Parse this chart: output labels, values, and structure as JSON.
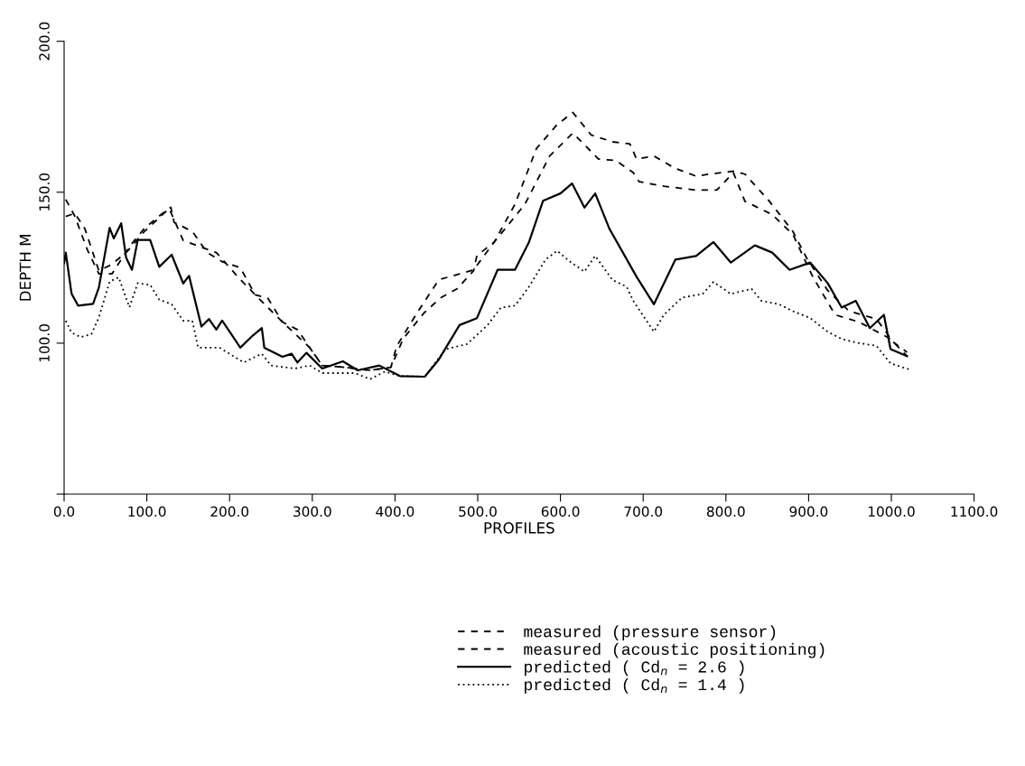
{
  "chart_data": {
    "type": "line",
    "xlabel": "PROFILES",
    "ylabel": "DEPTH M",
    "xlim": [
      0,
      1100
    ],
    "ylim": [
      50,
      200
    ],
    "xticks": [
      {
        "value": 0,
        "label": "0.0"
      },
      {
        "value": 100,
        "label": "100.0"
      },
      {
        "value": 200,
        "label": "200.0"
      },
      {
        "value": 300,
        "label": "300.0"
      },
      {
        "value": 400,
        "label": "400.0"
      },
      {
        "value": 500,
        "label": "500.0"
      },
      {
        "value": 600,
        "label": "600.0"
      },
      {
        "value": 700,
        "label": "700.0"
      },
      {
        "value": 800,
        "label": "800.0"
      },
      {
        "value": 900,
        "label": "900.0"
      },
      {
        "value": 1000,
        "label": "1000.0"
      },
      {
        "value": 1100,
        "label": "1100.0"
      }
    ],
    "yticks": [
      {
        "value": 50,
        "label": null
      },
      {
        "value": 100,
        "label": "100.0"
      },
      {
        "value": 150,
        "label": "150.0"
      },
      {
        "value": 200,
        "label": "200.0"
      }
    ],
    "grid": false,
    "legend": "bottom",
    "marker": "none",
    "series": [
      {
        "name": "measured (pressure sensor)",
        "color": "#000000",
        "line_style": "dashed",
        "x": [
          2,
          13,
          28,
          42,
          58,
          79,
          97,
          119,
          129,
          133,
          155,
          173,
          191,
          213,
          231,
          246,
          264,
          282,
          297,
          312,
          340,
          370,
          395,
          402,
          428,
          453,
          495,
          520,
          545,
          571,
          596,
          615,
          637,
          663,
          684,
          692,
          713,
          738,
          764,
          780,
          810,
          823,
          852,
          881,
          898,
          923,
          949,
          982,
          1003,
          1019
        ],
        "values": [
          147.6,
          142,
          131,
          123,
          123,
          132,
          138,
          143,
          145,
          140,
          137,
          130,
          127,
          125,
          116,
          115,
          107,
          104.5,
          98.5,
          92.6,
          92,
          91,
          92,
          99,
          110.6,
          121,
          124.3,
          133.5,
          146,
          164.5,
          172.4,
          176.4,
          169,
          166.7,
          166,
          161,
          162,
          158,
          155.3,
          156,
          157,
          156,
          147.2,
          137,
          128,
          117.5,
          110.6,
          108,
          100.2,
          97
        ]
      },
      {
        "name": "measured (acoustic positioning)",
        "color": "#000000",
        "line_style": "dashed",
        "x": [
          2,
          13,
          25,
          42,
          57,
          75,
          97,
          127,
          144,
          184,
          209,
          231,
          264,
          297,
          312,
          340,
          370,
          395,
          410,
          435,
          455,
          475,
          495,
          499,
          520,
          557,
          587,
          615,
          646,
          667,
          688,
          695,
          725,
          764,
          789,
          809,
          823,
          856,
          881,
          905,
          932,
          961,
          999,
          1019
        ],
        "values": [
          142,
          143,
          138,
          124,
          126,
          130,
          137,
          144.6,
          134,
          130,
          122.3,
          116,
          107,
          98.5,
          92.6,
          92,
          91,
          92,
          101.5,
          110,
          115,
          118,
          124,
          129,
          133.5,
          146,
          162,
          169.6,
          161,
          160.5,
          156.5,
          153.5,
          152,
          150.7,
          150.7,
          156.5,
          147,
          142.6,
          136,
          122,
          109.4,
          107,
          101.4,
          95.7
        ]
      },
      {
        "name": "predicted ( Cd$_{n}$ = 2.6 )",
        "color": "#000000",
        "line_style": "solid",
        "x": [
          0,
          2,
          9,
          17,
          35,
          42,
          55,
          60,
          69,
          75,
          82,
          89,
          104,
          115,
          130,
          144,
          151,
          166,
          175,
          184,
          191,
          213,
          228,
          239,
          242,
          264,
          275,
          282,
          293,
          312,
          337,
          355,
          381,
          406,
          436,
          453,
          478,
          499,
          524,
          545,
          562,
          579,
          600,
          614,
          629,
          642,
          659,
          692,
          713,
          739,
          764,
          785,
          806,
          835,
          856,
          877,
          902,
          923,
          940,
          957,
          974,
          991,
          999,
          1019
        ],
        "values": [
          126.5,
          130,
          116.4,
          112.4,
          113,
          118.4,
          138.2,
          134.7,
          139.7,
          128.3,
          124.3,
          134.2,
          134.2,
          125.3,
          129.3,
          119.8,
          122.3,
          105.5,
          108,
          104.5,
          107.5,
          98.5,
          102.5,
          105,
          98.5,
          95.5,
          96.5,
          93.6,
          96.8,
          91.6,
          94,
          91,
          92.6,
          89.1,
          88.9,
          94.6,
          106,
          108.3,
          124.3,
          124.3,
          133.5,
          147.2,
          149.6,
          152.9,
          144.9,
          149.6,
          138,
          122,
          112.9,
          127.7,
          128.9,
          133.5,
          126.7,
          132.4,
          130,
          124.3,
          126.7,
          119.9,
          111.8,
          114,
          105,
          109.4,
          98,
          95.7
        ]
      },
      {
        "name": "predicted ( Cd$_{n}$ = 1.4 )",
        "color": "#000000",
        "line_style": "dotted",
        "x": [
          2,
          9,
          20,
          33,
          42,
          55,
          66,
          73,
          79,
          89,
          104,
          115,
          130,
          144,
          155,
          162,
          188,
          217,
          239,
          250,
          279,
          297,
          312,
          351,
          370,
          388,
          406,
          436,
          461,
          487,
          512,
          528,
          545,
          562,
          582,
          596,
          613,
          629,
          642,
          663,
          680,
          688,
          713,
          725,
          747,
          772,
          785,
          806,
          831,
          843,
          864,
          881,
          902,
          923,
          940,
          957,
          982,
          999,
          1024
        ],
        "values": [
          107.4,
          103.5,
          102,
          103,
          108.5,
          120.4,
          121.8,
          116.4,
          111.9,
          119.9,
          119.3,
          114.4,
          112.9,
          107.4,
          107.4,
          98.5,
          98.5,
          93.6,
          96.5,
          92.6,
          91.6,
          92.6,
          90.1,
          90.1,
          88.1,
          90.6,
          89.1,
          88.9,
          98,
          99.7,
          106,
          111.8,
          112.4,
          118.7,
          127.7,
          130.6,
          126.7,
          123.7,
          128.9,
          120.9,
          118.7,
          114,
          103.8,
          109.4,
          115.1,
          116.3,
          120.3,
          116.3,
          118,
          114,
          112.9,
          110.6,
          108.3,
          103.8,
          101.4,
          100.2,
          99.1,
          93.3,
          91.1
        ]
      }
    ]
  }
}
